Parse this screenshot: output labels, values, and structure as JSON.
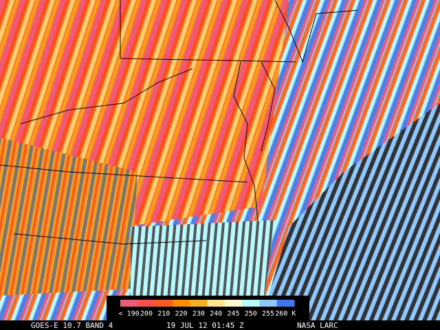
{
  "colorbar": {
    "items": [
      {
        "label": "< 190",
        "color": "#f05a7a"
      },
      {
        "label": "200",
        "color": "#ff4d4d"
      },
      {
        "label": "210",
        "color": "#ff5a1e"
      },
      {
        "label": "220",
        "color": "#ff8c00"
      },
      {
        "label": "230",
        "color": "#f5b020"
      },
      {
        "label": "240",
        "color": "#ffe68c"
      },
      {
        "label": "245",
        "color": "#fff8c8"
      },
      {
        "label": "250",
        "color": "#b4faff"
      },
      {
        "label": "255",
        "color": "#8cc8ff"
      },
      {
        "label": "260 K",
        "color": "#3c78f0"
      }
    ]
  },
  "footer": {
    "satellite": "GOES-E 10.7 BAND 4",
    "time": "19 JUL 12 01:45 Z",
    "source": "NASA LARC"
  }
}
